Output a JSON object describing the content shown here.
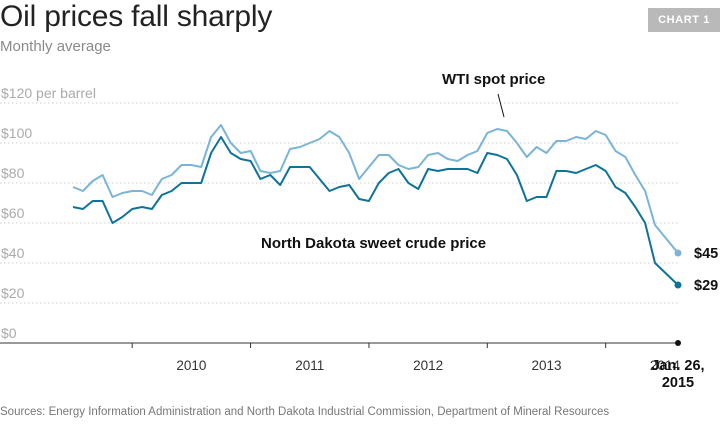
{
  "header": {
    "title": "Oil prices fall sharply",
    "subtitle": "Monthly average",
    "badge": "CHART 1"
  },
  "footer": {
    "source": "Sources: Energy Information Administration and North Dakota Industrial Commission, Department of Mineral Resources"
  },
  "colors": {
    "wti": "#7ab4d6",
    "nd": "#0e7399",
    "grid": "#cfcfcf",
    "axis": "#333333"
  },
  "chart_data": {
    "type": "line",
    "title": "Oil prices fall sharply",
    "subtitle": "Monthly average",
    "ylim": [
      0,
      120
    ],
    "yticks": [
      0,
      20,
      40,
      60,
      80,
      100,
      120
    ],
    "ytick_labels": [
      "$0",
      "$20",
      "$40",
      "$60",
      "$80",
      "$100",
      "$120 per barrel"
    ],
    "x_start": "2009-07",
    "x_end": "2015-01-26",
    "xtick_labels": [
      "2010",
      "2011",
      "2012",
      "2013",
      "2014"
    ],
    "xtick_positions": [
      "2010-07",
      "2011-07",
      "2012-07",
      "2013-07",
      "2014-07"
    ],
    "end_label": "Jan. 26, 2015",
    "grid": true,
    "series": [
      {
        "name": "WTI spot price",
        "values": [
          [
            "2009-07",
            78
          ],
          [
            "2009-08",
            76
          ],
          [
            "2009-09",
            81
          ],
          [
            "2009-10",
            84
          ],
          [
            "2009-11",
            73
          ],
          [
            "2009-12",
            75
          ],
          [
            "2010-01",
            76
          ],
          [
            "2010-02",
            76
          ],
          [
            "2010-03",
            74
          ],
          [
            "2010-04",
            82
          ],
          [
            "2010-05",
            84
          ],
          [
            "2010-06",
            89
          ],
          [
            "2010-07",
            89
          ],
          [
            "2010-08",
            88
          ],
          [
            "2010-09",
            103
          ],
          [
            "2010-10",
            109
          ],
          [
            "2010-11",
            100
          ],
          [
            "2010-12",
            95
          ],
          [
            "2011-01",
            96
          ],
          [
            "2011-02",
            86
          ],
          [
            "2011-03",
            85
          ],
          [
            "2011-04",
            86
          ],
          [
            "2011-05",
            97
          ],
          [
            "2011-06",
            98
          ],
          [
            "2011-07",
            100
          ],
          [
            "2011-08",
            102
          ],
          [
            "2011-09",
            106
          ],
          [
            "2011-10",
            103
          ],
          [
            "2011-11",
            95
          ],
          [
            "2011-12",
            82
          ],
          [
            "2012-01",
            88
          ],
          [
            "2012-02",
            94
          ],
          [
            "2012-03",
            94
          ],
          [
            "2012-04",
            89
          ],
          [
            "2012-05",
            87
          ],
          [
            "2012-06",
            88
          ],
          [
            "2012-07",
            94
          ],
          [
            "2012-08",
            95
          ],
          [
            "2012-09",
            92
          ],
          [
            "2012-10",
            91
          ],
          [
            "2012-11",
            94
          ],
          [
            "2012-12",
            96
          ],
          [
            "2013-01",
            105
          ],
          [
            "2013-02",
            107
          ],
          [
            "2013-03",
            106
          ],
          [
            "2013-04",
            100
          ],
          [
            "2013-05",
            93
          ],
          [
            "2013-06",
            98
          ],
          [
            "2013-07",
            95
          ],
          [
            "2013-08",
            101
          ],
          [
            "2013-09",
            101
          ],
          [
            "2013-10",
            103
          ],
          [
            "2013-11",
            102
          ],
          [
            "2013-12",
            106
          ],
          [
            "2014-01",
            104
          ],
          [
            "2014-02",
            96
          ],
          [
            "2014-03",
            93
          ],
          [
            "2014-04",
            84
          ],
          [
            "2014-05",
            76
          ],
          [
            "2014-06",
            59
          ],
          [
            "2015-01-26",
            45
          ]
        ],
        "end_value_label": "$45"
      },
      {
        "name": "North Dakota sweet crude price",
        "values": [
          [
            "2009-07",
            68
          ],
          [
            "2009-08",
            67
          ],
          [
            "2009-09",
            71
          ],
          [
            "2009-10",
            71
          ],
          [
            "2009-11",
            60
          ],
          [
            "2009-12",
            63
          ],
          [
            "2010-01",
            67
          ],
          [
            "2010-02",
            68
          ],
          [
            "2010-03",
            67
          ],
          [
            "2010-04",
            74
          ],
          [
            "2010-05",
            76
          ],
          [
            "2010-06",
            80
          ],
          [
            "2010-07",
            80
          ],
          [
            "2010-08",
            80
          ],
          [
            "2010-09",
            95
          ],
          [
            "2010-10",
            103
          ],
          [
            "2010-11",
            95
          ],
          [
            "2010-12",
            92
          ],
          [
            "2011-01",
            91
          ],
          [
            "2011-02",
            82
          ],
          [
            "2011-03",
            84
          ],
          [
            "2011-04",
            79
          ],
          [
            "2011-05",
            88
          ],
          [
            "2011-06",
            88
          ],
          [
            "2011-07",
            88
          ],
          [
            "2011-08",
            82
          ],
          [
            "2011-09",
            76
          ],
          [
            "2011-10",
            78
          ],
          [
            "2011-11",
            79
          ],
          [
            "2011-12",
            72
          ],
          [
            "2012-01",
            71
          ],
          [
            "2012-02",
            80
          ],
          [
            "2012-03",
            85
          ],
          [
            "2012-04",
            87
          ],
          [
            "2012-05",
            80
          ],
          [
            "2012-06",
            77
          ],
          [
            "2012-07",
            87
          ],
          [
            "2012-08",
            86
          ],
          [
            "2012-09",
            87
          ],
          [
            "2012-10",
            87
          ],
          [
            "2012-11",
            87
          ],
          [
            "2012-12",
            85
          ],
          [
            "2013-01",
            95
          ],
          [
            "2013-02",
            94
          ],
          [
            "2013-03",
            92
          ],
          [
            "2013-04",
            84
          ],
          [
            "2013-05",
            71
          ],
          [
            "2013-06",
            73
          ],
          [
            "2013-07",
            73
          ],
          [
            "2013-08",
            86
          ],
          [
            "2013-09",
            86
          ],
          [
            "2013-10",
            85
          ],
          [
            "2013-11",
            87
          ],
          [
            "2013-12",
            89
          ],
          [
            "2014-01",
            86
          ],
          [
            "2014-02",
            78
          ],
          [
            "2014-03",
            75
          ],
          [
            "2014-04",
            68
          ],
          [
            "2014-05",
            60
          ],
          [
            "2014-06",
            40
          ],
          [
            "2015-01-26",
            29
          ]
        ],
        "end_value_label": "$29"
      }
    ],
    "annotations": [
      "WTI spot price",
      "North Dakota sweet crude price"
    ]
  }
}
